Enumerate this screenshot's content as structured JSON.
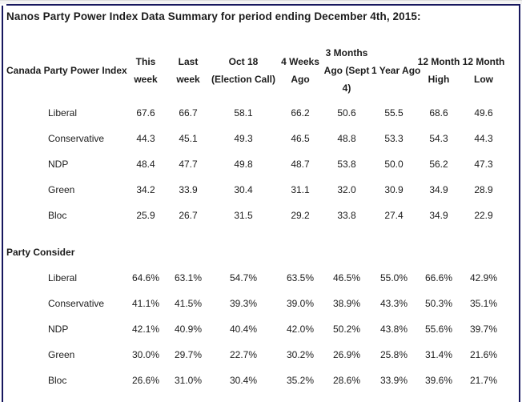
{
  "page": {
    "title": "Nanos Party Power Index Data Summary for period ending December 4th, 2015:"
  },
  "colors": {
    "frame_border": "#17175e",
    "top_strip": "#f3f3f3",
    "text": "#1c1c1c",
    "background": "#ffffff"
  },
  "table": {
    "corner_label": "Canada Party Power Index",
    "columns": [
      "This week",
      "Last week",
      "Oct 18 (Election Call)",
      "4 Weeks Ago",
      "3 Months Ago (Sept 4)",
      "1 Year Ago",
      "12 Month High",
      "12 Month Low"
    ],
    "sections": [
      {
        "rows": [
          {
            "party": "Liberal",
            "values": [
              "67.6",
              "66.7",
              "58.1",
              "66.2",
              "50.6",
              "55.5",
              "68.6",
              "49.6"
            ]
          },
          {
            "party": "Conservative",
            "values": [
              "44.3",
              "45.1",
              "49.3",
              "46.5",
              "48.8",
              "53.3",
              "54.3",
              "44.3"
            ]
          },
          {
            "party": "NDP",
            "values": [
              "48.4",
              "47.7",
              "49.8",
              "48.7",
              "53.8",
              "50.0",
              "56.2",
              "47.3"
            ]
          },
          {
            "party": "Green",
            "values": [
              "34.2",
              "33.9",
              "30.4",
              "31.1",
              "32.0",
              "30.9",
              "34.9",
              "28.9"
            ]
          },
          {
            "party": "Bloc",
            "values": [
              "25.9",
              "26.7",
              "31.5",
              "29.2",
              "33.8",
              "27.4",
              "34.9",
              "22.9"
            ]
          }
        ]
      },
      {
        "heading": "Party Consider",
        "rows": [
          {
            "party": "Liberal",
            "values": [
              "64.6%",
              "63.1%",
              "54.7%",
              "63.5%",
              "46.5%",
              "55.0%",
              "66.6%",
              "42.9%"
            ]
          },
          {
            "party": "Conservative",
            "values": [
              "41.1%",
              "41.5%",
              "39.3%",
              "39.0%",
              "38.9%",
              "43.3%",
              "50.3%",
              "35.1%"
            ]
          },
          {
            "party": "NDP",
            "values": [
              "42.1%",
              "40.9%",
              "40.4%",
              "42.0%",
              "50.2%",
              "43.8%",
              "55.6%",
              "39.7%"
            ]
          },
          {
            "party": "Green",
            "values": [
              "30.0%",
              "29.7%",
              "22.7%",
              "30.2%",
              "26.9%",
              "25.8%",
              "31.4%",
              "21.6%"
            ]
          },
          {
            "party": "Bloc",
            "values": [
              "26.6%",
              "31.0%",
              "30.4%",
              "35.2%",
              "28.6%",
              "33.9%",
              "39.6%",
              "21.7%"
            ]
          }
        ]
      }
    ]
  }
}
